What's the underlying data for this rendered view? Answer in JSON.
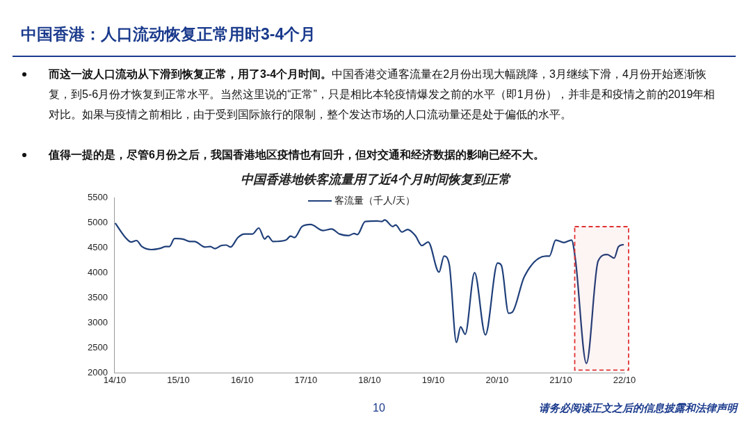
{
  "chart_data": {
    "type": "line",
    "title": "中国香港：人口流动恢复正常用时3-4个月",
    "subtitle": "中国香港地铁客流量用了近4个月时间恢复到正常",
    "annotations": [
      "而这一波人口流动从下滑到恢复正常，用了3-4个月时间。",
      "中国香港交通客流量在2月份出现大幅跳降，3月继续下滑，4月份开始逐渐恢复，到5-6月份才恢复到正常水平。当然这里说的“正常”，只是相比本轮疫情爆发之前的水平（即1月份），并非是和疫情之前的2019年相对比。如果与疫情之前相比，由于受到国际旅行的限制，整个发达市场的人口流动量还是处于偏低的水平。",
      "值得一提的是，尽管6月份之后，我国香港地区疫情也有回升，但对交通和经济数据的影响已经不大。",
      "10",
      "请务必阅读正文之后的信息披露和法律声明"
    ],
    "series": [
      {
        "name": "客流量（千人/天）",
        "color": "#1f3f7a",
        "x": [
          "2014-10-04",
          "2014-12-02",
          "2015-01-04",
          "2015-02-03",
          "2015-03-06",
          "2015-04-28",
          "2015-06-24",
          "2015-07-19",
          "2015-08-11",
          "2015-09-09",
          "2015-10-26",
          "2015-12-06",
          "2016-01-01",
          "2016-03-02",
          "2016-04-01",
          "2016-04-28",
          "2016-06-02",
          "2016-07-01",
          "2016-07-26",
          "2016-09-06",
          "2016-10-15",
          "2016-11-28",
          "2017-01-04",
          "2017-02-07",
          "2017-02-25",
          "2017-03-27",
          "2017-06-09",
          "2017-07-05",
          "2017-07-28",
          "2017-09-09",
          "2017-10-28",
          "2018-01-08",
          "2018-02-25",
          "2018-04-12",
          "2018-06-02",
          "2018-07-05",
          "2018-07-23",
          "2018-09-06",
          "2018-11-14",
          "2018-12-09",
          "2018-12-27",
          "2019-02-11",
          "2019-02-28",
          "2019-04-05",
          "2019-05-07",
          "2019-06-20",
          "2019-07-28",
          "2019-09-02",
          "2019-11-03",
          "2019-12-02",
          "2020-01-01",
          "2020-02-11",
          "2020-03-06",
          "2020-04-01",
          "2020-05-25",
          "2020-07-26",
          "2020-10-04",
          "2020-10-26",
          "2020-12-06",
          "2020-12-27",
          "2021-03-06",
          "2021-07-08",
          "2021-07-28",
          "2021-09-02",
          "2021-10-19",
          "2021-12-02",
          "2021-12-24",
          "2022-02-25",
          "2022-05-03",
          "2022-06-24",
          "2022-08-03",
          "2022-08-28",
          "2022-09-27"
        ],
        "values": [
          4990,
          4700,
          4610,
          4640,
          4520,
          4460,
          4490,
          4520,
          4520,
          4680,
          4670,
          4620,
          4620,
          4510,
          4520,
          4480,
          4540,
          4550,
          4510,
          4700,
          4770,
          4770,
          4890,
          4670,
          4730,
          4620,
          4650,
          4730,
          4700,
          4920,
          4960,
          4840,
          4870,
          4770,
          4740,
          4780,
          4760,
          5020,
          5030,
          5020,
          5050,
          4920,
          4950,
          4810,
          4860,
          4740,
          4540,
          4610,
          4010,
          4330,
          4160,
          2610,
          2920,
          2770,
          4000,
          2760,
          4190,
          4140,
          3190,
          3210,
          3920,
          4330,
          4330,
          4650,
          4600,
          4650,
          4260,
          2190,
          4230,
          4360,
          4290,
          4520,
          4560
        ]
      }
    ],
    "xlim": [
      "2014-10",
      "2022-10"
    ],
    "xticks": [
      {
        "value": "2014-10",
        "label": "14/10"
      },
      {
        "value": "2015-10",
        "label": "15/10"
      },
      {
        "value": "2016-10",
        "label": "16/10"
      },
      {
        "value": "2017-10",
        "label": "17/10"
      },
      {
        "value": "2018-10",
        "label": "18/10"
      },
      {
        "value": "2019-10",
        "label": "19/10"
      },
      {
        "value": "2020-10",
        "label": "20/10"
      },
      {
        "value": "2021-10",
        "label": "21/10"
      },
      {
        "value": "2022-10",
        "label": "22/10"
      }
    ],
    "ylim": [
      2000,
      5500
    ],
    "yticks": [
      2000,
      2500,
      3000,
      3500,
      4000,
      4500,
      5000,
      5500
    ],
    "bands": [
      {
        "axis": "x",
        "from": "2021-12-20",
        "to": "2022-10",
        "color": "#e03030"
      }
    ],
    "grid": false,
    "legend": "top",
    "marker": "none",
    "line_style": "solid"
  }
}
